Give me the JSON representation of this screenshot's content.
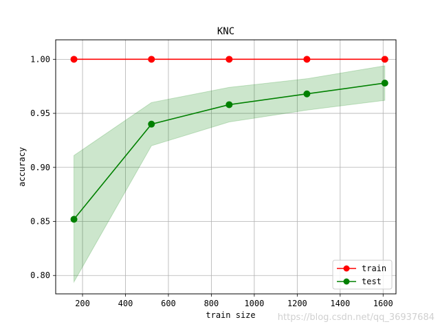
{
  "chart_data": {
    "type": "line",
    "title": "KNC",
    "xlabel": "train size",
    "ylabel": "accuracy",
    "xlim": [
      75,
      1660
    ],
    "ylim": [
      0.783,
      1.018
    ],
    "xticks": [
      200,
      400,
      600,
      800,
      1000,
      1200,
      1400,
      1600
    ],
    "yticks": [
      0.8,
      0.85,
      0.9,
      0.95,
      1.0
    ],
    "grid": true,
    "legend_position": "bottom-right",
    "x": [
      160,
      521,
      883,
      1245,
      1608
    ],
    "series": [
      {
        "name": "train",
        "color": "#ff0000",
        "marker": "circle",
        "values": [
          1.0,
          1.0,
          1.0,
          1.0,
          1.0
        ]
      },
      {
        "name": "test",
        "color": "#008000",
        "marker": "circle",
        "values": [
          0.852,
          0.94,
          0.958,
          0.968,
          0.978
        ],
        "band_lower": [
          0.794,
          0.92,
          0.942,
          0.953,
          0.962
        ],
        "band_upper": [
          0.911,
          0.96,
          0.974,
          0.982,
          0.994
        ],
        "band_color": "#008000"
      }
    ]
  },
  "watermark": "https://blog.csdn.net/qq_36937684"
}
